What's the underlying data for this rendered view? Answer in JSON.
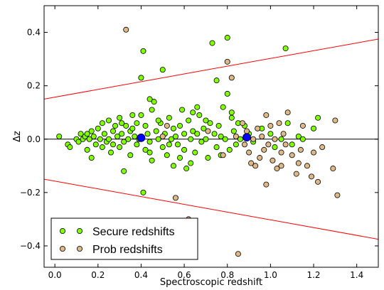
{
  "chart_data": {
    "type": "scatter",
    "xlabel": "Spectroscopic redshift",
    "ylabel": "Δz",
    "xlim": [
      -0.05,
      1.5
    ],
    "ylim": [
      -0.48,
      0.5
    ],
    "xticks": [
      "0.0",
      "0.2",
      "0.4",
      "0.6",
      "0.8",
      "1.0",
      "1.2",
      "1.4"
    ],
    "xtick_values": [
      0.0,
      0.2,
      0.4,
      0.6,
      0.8,
      1.0,
      1.2,
      1.4
    ],
    "yticks": [
      "−0.4",
      "−0.2",
      "0.0",
      "0.2",
      "0.4"
    ],
    "ytick_values": [
      -0.4,
      -0.2,
      0.0,
      0.2,
      0.4
    ],
    "grid": false,
    "legend_position": "bottom-left",
    "reference_lines": [
      {
        "name": "zero",
        "color": "#000000",
        "points": [
          [
            -0.05,
            0.0
          ],
          [
            1.5,
            0.0
          ]
        ]
      },
      {
        "name": "upper",
        "color": "#ff0000",
        "points": [
          [
            -0.05,
            0.15
          ],
          [
            1.5,
            0.375
          ]
        ]
      },
      {
        "name": "lower",
        "color": "#ff0000",
        "points": [
          [
            -0.05,
            -0.15
          ],
          [
            1.5,
            -0.375
          ]
        ]
      }
    ],
    "series": [
      {
        "name": "Secure redshifts",
        "color": "#7fff00",
        "points": [
          [
            0.02,
            0.01
          ],
          [
            0.06,
            -0.02
          ],
          [
            0.07,
            -0.03
          ],
          [
            0.1,
            0.0
          ],
          [
            0.11,
            -0.01
          ],
          [
            0.12,
            0.02
          ],
          [
            0.13,
            0.0
          ],
          [
            0.14,
            0.01
          ],
          [
            0.15,
            -0.04
          ],
          [
            0.15,
            0.02
          ],
          [
            0.16,
            0.0
          ],
          [
            0.17,
            0.03
          ],
          [
            0.17,
            -0.07
          ],
          [
            0.18,
            0.01
          ],
          [
            0.19,
            -0.02
          ],
          [
            0.2,
            0.04
          ],
          [
            0.21,
            0.0
          ],
          [
            0.22,
            0.06
          ],
          [
            0.22,
            -0.03
          ],
          [
            0.23,
            0.02
          ],
          [
            0.24,
            -0.01
          ],
          [
            0.25,
            0.07
          ],
          [
            0.25,
            0.0
          ],
          [
            0.26,
            -0.05
          ],
          [
            0.27,
            0.03
          ],
          [
            0.27,
            -0.02
          ],
          [
            0.28,
            0.05
          ],
          [
            0.29,
            0.01
          ],
          [
            0.3,
            -0.03
          ],
          [
            0.3,
            0.08
          ],
          [
            0.31,
            0.02
          ],
          [
            0.32,
            -0.01
          ],
          [
            0.32,
            -0.12
          ],
          [
            0.33,
            0.05
          ],
          [
            0.34,
            0.0
          ],
          [
            0.35,
            0.03
          ],
          [
            0.35,
            -0.06
          ],
          [
            0.36,
            0.04
          ],
          [
            0.37,
            0.01
          ],
          [
            0.38,
            -0.02
          ],
          [
            0.38,
            0.06
          ],
          [
            0.39,
            0.0
          ],
          [
            0.4,
            0.09
          ],
          [
            0.4,
            0.23
          ],
          [
            0.41,
            0.33
          ],
          [
            0.41,
            -0.2
          ],
          [
            0.42,
            -0.04
          ],
          [
            0.42,
            0.05
          ],
          [
            0.43,
            0.02
          ],
          [
            0.44,
            -0.01
          ],
          [
            0.44,
            0.15
          ],
          [
            0.45,
            0.11
          ],
          [
            0.45,
            -0.08
          ],
          [
            0.46,
            0.14
          ],
          [
            0.47,
            0.03
          ],
          [
            0.48,
            0.0
          ],
          [
            0.49,
            0.06
          ],
          [
            0.5,
            -0.03
          ],
          [
            0.5,
            0.26
          ],
          [
            0.51,
            0.02
          ],
          [
            0.52,
            -0.06
          ],
          [
            0.53,
            0.08
          ],
          [
            0.54,
            0.0
          ],
          [
            0.55,
            -0.1
          ],
          [
            0.55,
            0.04
          ],
          [
            0.56,
            0.01
          ],
          [
            0.56,
            -0.31
          ],
          [
            0.57,
            -0.02
          ],
          [
            0.58,
            0.05
          ],
          [
            0.59,
            0.11
          ],
          [
            0.6,
            -0.04
          ],
          [
            0.6,
            0.02
          ],
          [
            0.61,
            -0.11
          ],
          [
            0.62,
            0.07
          ],
          [
            0.63,
            0.0
          ],
          [
            0.64,
            0.03
          ],
          [
            0.65,
            -0.05
          ],
          [
            0.66,
            0.02
          ],
          [
            0.67,
            0.09
          ],
          [
            0.68,
            -0.01
          ],
          [
            0.69,
            0.04
          ],
          [
            0.7,
            0.0
          ],
          [
            0.71,
            -0.07
          ],
          [
            0.72,
            0.06
          ],
          [
            0.73,
            0.36
          ],
          [
            0.74,
            0.02
          ],
          [
            0.75,
            0.22
          ],
          [
            0.75,
            -0.03
          ],
          [
            0.76,
            0.05
          ],
          [
            0.77,
            0.01
          ],
          [
            0.78,
            0.12
          ],
          [
            0.79,
            0.0
          ],
          [
            0.8,
            0.38
          ],
          [
            0.8,
            0.17
          ],
          [
            0.81,
            -0.04
          ],
          [
            0.82,
            0.08
          ],
          [
            0.83,
            0.03
          ],
          [
            0.84,
            -0.02
          ],
          [
            0.85,
            0.06
          ],
          [
            0.86,
            0.0
          ],
          [
            0.88,
            0.05
          ],
          [
            0.9,
            0.02
          ],
          [
            0.92,
            -0.01
          ],
          [
            0.96,
            0.04
          ],
          [
            1.0,
            0.02
          ],
          [
            1.02,
            -0.03
          ],
          [
            1.05,
            0.0
          ],
          [
            1.07,
            0.34
          ],
          [
            1.08,
            0.06
          ],
          [
            1.1,
            -0.02
          ],
          [
            1.13,
            0.01
          ],
          [
            1.15,
            0.0
          ],
          [
            1.2,
            0.04
          ],
          [
            1.22,
            0.08
          ],
          [
            0.36,
            0.09
          ],
          [
            0.48,
            0.07
          ],
          [
            0.53,
            -0.02
          ],
          [
            0.63,
            -0.09
          ],
          [
            0.66,
            0.12
          ],
          [
            0.7,
            0.07
          ],
          [
            0.77,
            -0.06
          ],
          [
            0.82,
            0.1
          ],
          [
            0.31,
            0.06
          ],
          [
            0.44,
            -0.05
          ],
          [
            0.58,
            -0.07
          ],
          [
            0.64,
            0.1
          ]
        ]
      },
      {
        "name": "Prob redshifts",
        "color": "#deb887",
        "points": [
          [
            0.33,
            0.41
          ],
          [
            0.5,
            0.01
          ],
          [
            0.52,
            0.05
          ],
          [
            0.56,
            -0.22
          ],
          [
            0.62,
            -0.3
          ],
          [
            0.71,
            0.03
          ],
          [
            0.78,
            -0.06
          ],
          [
            0.8,
            0.29
          ],
          [
            0.82,
            0.23
          ],
          [
            0.84,
            0.01
          ],
          [
            0.85,
            -0.43
          ],
          [
            0.87,
            0.06
          ],
          [
            0.88,
            -0.02
          ],
          [
            0.89,
            0.03
          ],
          [
            0.9,
            -0.05
          ],
          [
            0.91,
            -0.09
          ],
          [
            0.92,
            0.0
          ],
          [
            0.93,
            -0.1
          ],
          [
            0.94,
            0.04
          ],
          [
            0.95,
            -0.07
          ],
          [
            0.96,
            0.01
          ],
          [
            0.97,
            -0.04
          ],
          [
            0.98,
            0.09
          ],
          [
            0.99,
            -0.02
          ],
          [
            1.0,
            0.05
          ],
          [
            1.01,
            -0.08
          ],
          [
            1.02,
            0.0
          ],
          [
            1.03,
            -0.11
          ],
          [
            1.04,
            0.06
          ],
          [
            1.05,
            -0.05
          ],
          [
            1.06,
            0.02
          ],
          [
            1.07,
            -0.02
          ],
          [
            1.08,
            0.1
          ],
          [
            1.1,
            -0.06
          ],
          [
            1.12,
            -0.13
          ],
          [
            1.14,
            -0.04
          ],
          [
            1.15,
            0.05
          ],
          [
            1.17,
            -0.1
          ],
          [
            1.19,
            -0.14
          ],
          [
            1.2,
            -0.05
          ],
          [
            1.22,
            -0.16
          ],
          [
            1.24,
            -0.03
          ],
          [
            1.29,
            -0.11
          ],
          [
            1.3,
            0.07
          ],
          [
            1.31,
            -0.21
          ],
          [
            0.98,
            -0.17
          ],
          [
            1.05,
            -0.1
          ],
          [
            1.13,
            -0.09
          ]
        ]
      }
    ],
    "mean_points": [
      {
        "x": 0.4,
        "y": 0.005,
        "color": "#0000ff"
      },
      {
        "x": 0.89,
        "y": 0.007,
        "color": "#0000ff"
      }
    ]
  }
}
